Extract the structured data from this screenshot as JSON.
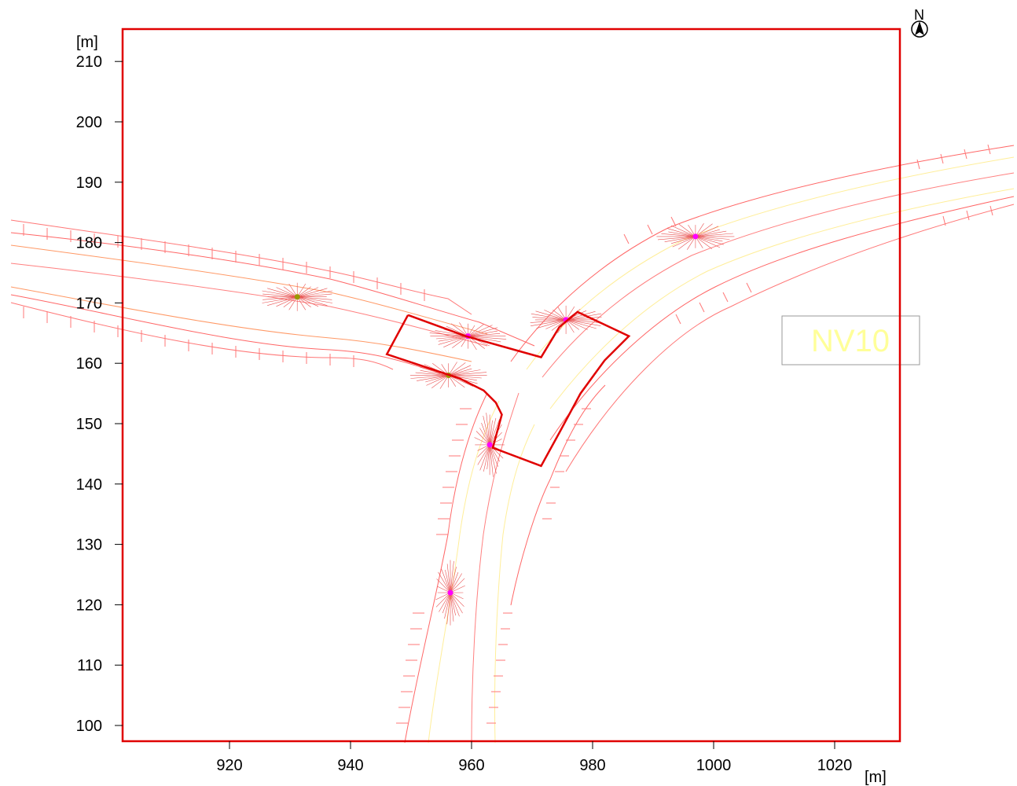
{
  "axes": {
    "x_unit": "[m]",
    "y_unit": "[m]",
    "x_ticks": [
      920,
      940,
      960,
      980,
      1000,
      1020
    ],
    "y_ticks": [
      100,
      110,
      120,
      130,
      140,
      150,
      160,
      170,
      180,
      190,
      200,
      210
    ]
  },
  "north_arrow": {
    "label": "N",
    "icon": "north-arrow-icon"
  },
  "map_label": {
    "text": "NV10",
    "color": "#ffff99"
  },
  "colors": {
    "frame": "#e00000",
    "road_edge": "#ff6666",
    "centerline": "#ff9966",
    "lane_line": "#ffffaa",
    "source_marker": "#ff00ff",
    "source_alt_marker": "#999900"
  },
  "calculation_area": {
    "points": [
      [
        949.5,
        168
      ],
      [
        946,
        161.5
      ],
      [
        955,
        158.5
      ],
      [
        958,
        157.5
      ],
      [
        962,
        155.5
      ],
      [
        964,
        153.5
      ],
      [
        965,
        151.5
      ],
      [
        963.5,
        146
      ],
      [
        971.5,
        143
      ],
      [
        974.5,
        148.5
      ],
      [
        978,
        155
      ],
      [
        982,
        160.5
      ],
      [
        986,
        164.5
      ],
      [
        977.5,
        168.5
      ],
      [
        974.5,
        166
      ],
      [
        971.5,
        161
      ],
      [
        959,
        164.5
      ],
      [
        949.5,
        168
      ]
    ]
  },
  "sources": [
    {
      "x": 931.2,
      "y": 171.0,
      "type": "alt"
    },
    {
      "x": 959.4,
      "y": 164.5,
      "type": "main"
    },
    {
      "x": 956.2,
      "y": 158.0,
      "type": "alt"
    },
    {
      "x": 975.6,
      "y": 167.2,
      "type": "main"
    },
    {
      "x": 963.0,
      "y": 146.5,
      "type": "main"
    },
    {
      "x": 997.0,
      "y": 181.0,
      "type": "main"
    },
    {
      "x": 956.5,
      "y": 122.0,
      "type": "main"
    }
  ]
}
